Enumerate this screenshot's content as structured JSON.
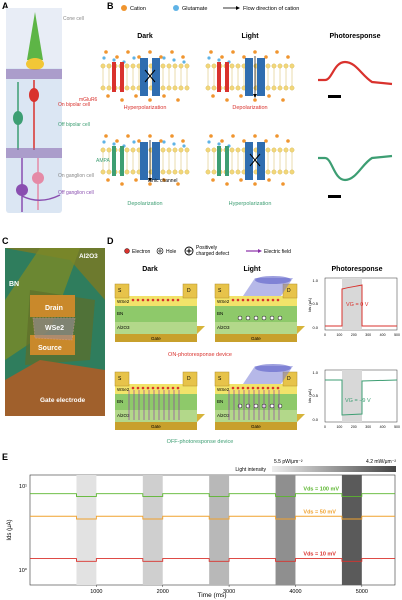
{
  "panels": {
    "A": "A",
    "B": "B",
    "C": "C",
    "D": "D",
    "E": "E"
  },
  "panel_a": {
    "cone_cell": "Cone cell",
    "on_bipolar": "On bipolar cell",
    "off_bipolar": "Off bipolar cell",
    "on_ganglion": "On ganglion cell",
    "off_ganglion": "Off ganglion cell"
  },
  "panel_b": {
    "legend": {
      "cation": "Cation",
      "glutamate": "Glutamate",
      "flow": "Flow direction of cation"
    },
    "headers": {
      "dark": "Dark",
      "light": "Light",
      "photoresponse": "Photoresponse"
    },
    "receptor_top": "mGluR6",
    "receptor_bottom": "AMPA",
    "ionic_channel": "Ionic channel",
    "captions": {
      "top_dark": "Hyperpolarization",
      "top_light": "Depolarization",
      "bottom_dark": "Depolarization",
      "bottom_light": "Hyperpolarization"
    },
    "colors": {
      "cation": "#f0952f",
      "glutamate": "#5fb3e6",
      "on": "#d9322d",
      "off": "#3d9e73",
      "channel": "#2f6db0"
    }
  },
  "panel_c": {
    "al2o3": "Al2O3",
    "bn": "BN",
    "drain": "Drain",
    "wse2": "WSe2",
    "source": "Source",
    "gate": "Gate electrode"
  },
  "panel_d": {
    "legend": {
      "electron": "Electron",
      "hole": "Hole",
      "defect_l1": "Positively",
      "defect_l2": "charged defect",
      "field": "Electric field"
    },
    "headers": {
      "dark": "Dark",
      "light": "Light",
      "photoresponse": "Photoresponse"
    },
    "device_labels": {
      "s": "S",
      "d": "D",
      "wse2": "WSe2",
      "bn": "BN",
      "al2o3": "Al2O3",
      "gate": "Gate"
    },
    "on_caption": "ON-photoresponse device",
    "off_caption": "OFF-photoresponse device",
    "on_vg": "VG = 0 V",
    "off_vg": "VG = −9 V",
    "ylabel": "Ids (μA)",
    "on_yticks": [
      "1.0",
      "0.5",
      "0.0"
    ],
    "off_yticks": [
      "1.0",
      "0.5",
      "0.0"
    ],
    "xticks": [
      "0",
      "100",
      "200",
      "300",
      "400",
      "500"
    ]
  },
  "chart_data": {
    "type": "line",
    "ylabel": "Ids (μA)",
    "xlabel": "Time (ms)",
    "xticks": [
      "1000",
      "2000",
      "3000",
      "4000",
      "5000"
    ],
    "yticks": [
      "10¹",
      "10⁰"
    ],
    "xlim": [
      0,
      5500
    ],
    "intensity_low": "5.5 pW/μm⁻²",
    "intensity_high": "4.2 mW/μm⁻²",
    "intensity_label": "Light intensity",
    "light_pulses": [
      [
        700,
        1000
      ],
      [
        1700,
        2000
      ],
      [
        2700,
        3000
      ],
      [
        3700,
        4000
      ],
      [
        4700,
        5000
      ]
    ],
    "series": [
      {
        "name": "Vds = 100 mV",
        "baseline": 0.17,
        "drop": 0.025,
        "color": "#5bb62e"
      },
      {
        "name": "Vds = 50 mV",
        "baseline": 0.375,
        "drop": 0.025,
        "color": "#f0a22e"
      },
      {
        "name": "Vds = 10 mV",
        "baseline": 0.76,
        "drop": 0.025,
        "color": "#d9322d"
      }
    ]
  }
}
